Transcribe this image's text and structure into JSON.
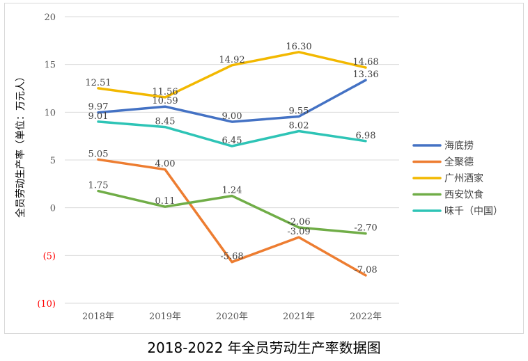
{
  "chart_data": {
    "type": "line",
    "title": "2018-2022 年全员劳动生产率数据图",
    "xlabel": "",
    "ylabel": "全员劳动生产率（单位：万元人）",
    "categories": [
      "2018年",
      "2019年",
      "2020年",
      "2021年",
      "2022年"
    ],
    "ylim": [
      -10,
      20
    ],
    "yticks": [
      20,
      15,
      10,
      5,
      0,
      -5,
      -10
    ],
    "ytick_labels": [
      "20",
      "15",
      "10",
      "5",
      "0",
      "(5)",
      "(10)"
    ],
    "ytick_colors": [
      "#595959",
      "#595959",
      "#595959",
      "#595959",
      "#595959",
      "#ff0000",
      "#ff0000"
    ],
    "grid": true,
    "legend_position": "right",
    "series": [
      {
        "name": "海底捞",
        "color": "#4472c4",
        "values": [
          9.97,
          10.59,
          9.0,
          9.55,
          13.36
        ],
        "labels": [
          "9.97",
          "10.59",
          "9.00",
          "9.55",
          "13.36"
        ]
      },
      {
        "name": "全聚德",
        "color": "#ed7d31",
        "values": [
          5.05,
          4.0,
          -5.68,
          -3.09,
          -7.08
        ],
        "labels": [
          "5.05",
          "4.00",
          "-5.68",
          "-3.09",
          "-7.08"
        ]
      },
      {
        "name": "广州酒家",
        "color": "#f2b800",
        "values": [
          12.51,
          11.56,
          14.92,
          16.3,
          14.68
        ],
        "labels": [
          "12.51",
          "11.56",
          "14.92",
          "16.30",
          "14.68"
        ]
      },
      {
        "name": "西安饮食",
        "color": "#70ad47",
        "values": [
          1.75,
          0.11,
          1.24,
          -2.06,
          -2.7
        ],
        "labels": [
          "1.75",
          "0.11",
          "1.24",
          "-2.06",
          "-2.70"
        ]
      },
      {
        "name": "味千（中国）",
        "color": "#2ec4b6",
        "values": [
          9.01,
          8.45,
          6.45,
          8.02,
          6.98
        ],
        "labels": [
          "9.01",
          "8.45",
          "6.45",
          "8.02",
          "6.98"
        ]
      }
    ]
  }
}
